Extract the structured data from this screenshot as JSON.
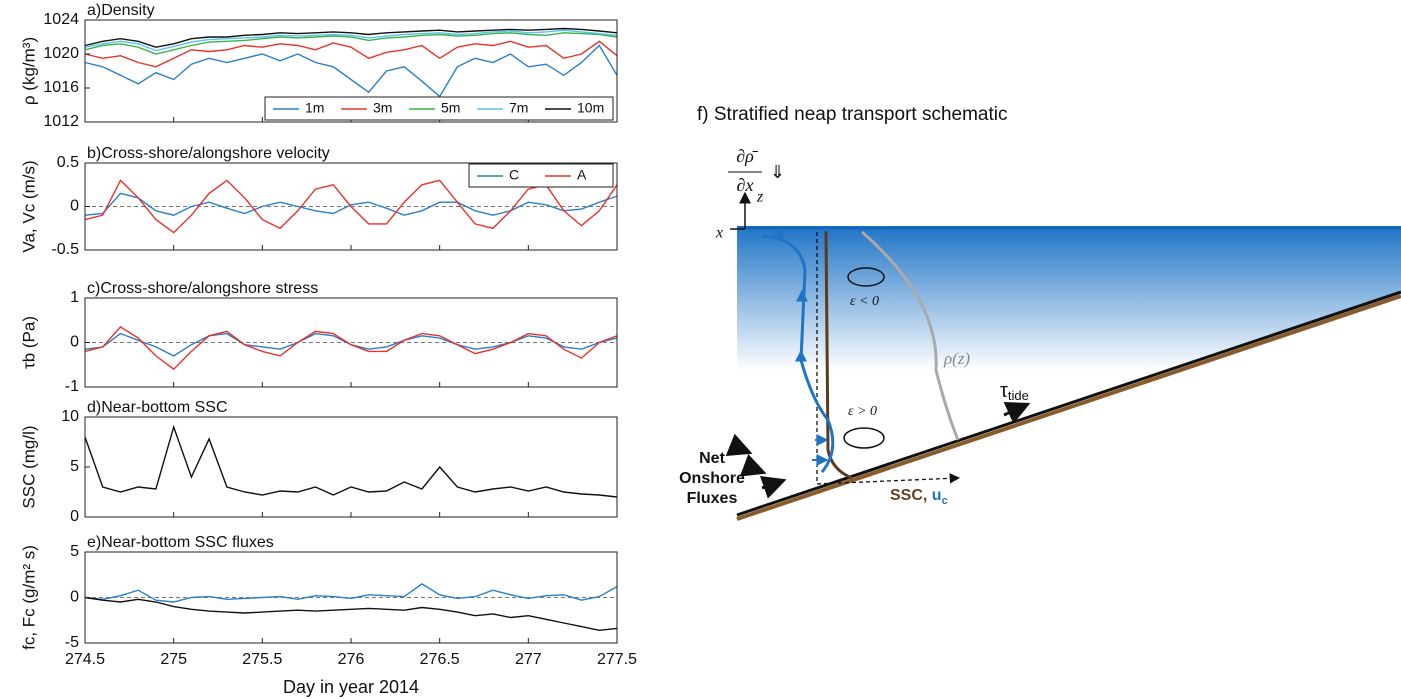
{
  "chart_data": [
    {
      "type": "line",
      "title": "a)Density",
      "ylabel": "ρ (kg/m³)",
      "x": [
        274.5,
        274.6,
        274.7,
        274.8,
        274.9,
        275,
        275.1,
        275.2,
        275.3,
        275.4,
        275.5,
        275.6,
        275.7,
        275.8,
        275.9,
        276,
        276.1,
        276.2,
        276.3,
        276.4,
        276.5,
        276.6,
        276.7,
        276.8,
        276.9,
        277,
        277.1,
        277.2,
        277.3,
        277.4,
        277.5
      ],
      "xlim": [
        274.5,
        277.5
      ],
      "xticks": [
        274.5,
        275,
        275.5,
        276,
        276.5,
        277,
        277.5
      ],
      "xtick_labels": false,
      "ylim": [
        1012,
        1024
      ],
      "yticks": [
        1012,
        1016,
        1020,
        1024
      ],
      "legend": "lower right",
      "zero_line": false,
      "series": [
        {
          "name": "1m",
          "color": "#2a7fc9",
          "values": [
            1019,
            1018.5,
            1017.5,
            1016.5,
            1017.8,
            1017,
            1018.8,
            1019.5,
            1019,
            1019.5,
            1020,
            1019.2,
            1020,
            1019,
            1018.5,
            1017,
            1015.5,
            1018,
            1018.5,
            1016.8,
            1015,
            1018.5,
            1019.5,
            1019,
            1020,
            1018.5,
            1018.8,
            1017.5,
            1019,
            1021,
            1017.5
          ]
        },
        {
          "name": "3m",
          "color": "#e8322c",
          "values": [
            1020,
            1019.5,
            1019.8,
            1019,
            1018.5,
            1019.5,
            1020.5,
            1020.3,
            1020.5,
            1021,
            1020.8,
            1021.2,
            1021,
            1020.5,
            1021.3,
            1020.8,
            1019.5,
            1020.2,
            1020.5,
            1021,
            1019.5,
            1020.8,
            1021.2,
            1021,
            1021.5,
            1020.8,
            1021,
            1019.5,
            1020,
            1021.5,
            1019.8
          ]
        },
        {
          "name": "5m",
          "color": "#3cb44b",
          "values": [
            1020.5,
            1021,
            1021.2,
            1020.8,
            1020,
            1020.5,
            1021,
            1021.4,
            1021.5,
            1021.6,
            1021.8,
            1022,
            1021.9,
            1022,
            1022.1,
            1022,
            1021.6,
            1021.9,
            1022,
            1022.2,
            1022.3,
            1022.1,
            1022.2,
            1022.4,
            1022.5,
            1022.3,
            1022.2,
            1022.5,
            1022.4,
            1022.3,
            1022
          ]
        },
        {
          "name": "7m",
          "color": "#5cc3ee",
          "values": [
            1020.8,
            1021.2,
            1021.5,
            1021.2,
            1020.4,
            1020.9,
            1021.4,
            1021.7,
            1021.8,
            1021.9,
            1022,
            1022.2,
            1022.1,
            1022.2,
            1022.3,
            1022.2,
            1021.9,
            1022.1,
            1022.3,
            1022.4,
            1022.5,
            1022.3,
            1022.4,
            1022.6,
            1022.7,
            1022.5,
            1022.6,
            1022.8,
            1022.6,
            1022.4,
            1022.2
          ]
        },
        {
          "name": "10m",
          "color": "#111111",
          "values": [
            1021,
            1021.5,
            1021.8,
            1021.5,
            1020.8,
            1021.2,
            1021.8,
            1022,
            1022,
            1022.2,
            1022.3,
            1022.5,
            1022.4,
            1022.5,
            1022.6,
            1022.5,
            1022.3,
            1022.5,
            1022.6,
            1022.7,
            1022.8,
            1022.6,
            1022.7,
            1022.8,
            1022.9,
            1022.8,
            1022.9,
            1023,
            1022.9,
            1022.7,
            1022.5
          ]
        }
      ]
    },
    {
      "type": "line",
      "title": "b)Cross-shore/alongshore velocity",
      "ylabel": "Va, Vc (m/s)",
      "x": [
        274.5,
        274.6,
        274.7,
        274.8,
        274.9,
        275,
        275.1,
        275.2,
        275.3,
        275.4,
        275.5,
        275.6,
        275.7,
        275.8,
        275.9,
        276,
        276.1,
        276.2,
        276.3,
        276.4,
        276.5,
        276.6,
        276.7,
        276.8,
        276.9,
        277,
        277.1,
        277.2,
        277.3,
        277.4,
        277.5
      ],
      "xlim": [
        274.5,
        277.5
      ],
      "xticks": [
        274.5,
        275,
        275.5,
        276,
        276.5,
        277,
        277.5
      ],
      "xtick_labels": false,
      "ylim": [
        -0.5,
        0.5
      ],
      "yticks": [
        -0.5,
        0,
        0.5
      ],
      "legend": "upper right",
      "zero_line": true,
      "series": [
        {
          "name": "C",
          "color": "#2a7fc9",
          "values": [
            -0.1,
            -0.08,
            0.15,
            0.1,
            -0.05,
            -0.1,
            0,
            0.05,
            -0.02,
            -0.08,
            0,
            0.05,
            0,
            -0.05,
            -0.08,
            0.02,
            0.05,
            -0.02,
            -0.1,
            -0.05,
            0.05,
            0.05,
            -0.05,
            -0.1,
            -0.05,
            0.05,
            0.02,
            -0.05,
            -0.03,
            0.05,
            0.12
          ]
        },
        {
          "name": "A",
          "color": "#e8322c",
          "values": [
            -0.15,
            -0.1,
            0.3,
            0.1,
            -0.15,
            -0.3,
            -0.1,
            0.15,
            0.3,
            0.1,
            -0.15,
            -0.25,
            -0.05,
            0.2,
            0.25,
            0,
            -0.2,
            -0.2,
            0.05,
            0.25,
            0.3,
            0.05,
            -0.2,
            -0.25,
            -0.05,
            0.2,
            0.25,
            -0.05,
            -0.22,
            -0.05,
            0.25
          ]
        }
      ]
    },
    {
      "type": "line",
      "title": "c)Cross-shore/alongshore stress",
      "ylabel": "τb (Pa)",
      "x": [
        274.5,
        274.6,
        274.7,
        274.8,
        274.9,
        275,
        275.1,
        275.2,
        275.3,
        275.4,
        275.5,
        275.6,
        275.7,
        275.8,
        275.9,
        276,
        276.1,
        276.2,
        276.3,
        276.4,
        276.5,
        276.6,
        276.7,
        276.8,
        276.9,
        277,
        277.1,
        277.2,
        277.3,
        277.4,
        277.5
      ],
      "xlim": [
        274.5,
        277.5
      ],
      "xticks": [
        274.5,
        275,
        275.5,
        276,
        276.5,
        277,
        277.5
      ],
      "xtick_labels": false,
      "ylim": [
        -1,
        1
      ],
      "yticks": [
        -1,
        0,
        1
      ],
      "zero_line": true,
      "series": [
        {
          "color": "#2a7fc9",
          "values": [
            -0.15,
            -0.1,
            0.2,
            0.05,
            -0.1,
            -0.3,
            -0.05,
            0.15,
            0.2,
            -0.05,
            -0.1,
            -0.15,
            0,
            0.2,
            0.15,
            -0.05,
            -0.15,
            -0.1,
            0.05,
            0.15,
            0.1,
            -0.05,
            -0.15,
            -0.1,
            0,
            0.15,
            0.1,
            -0.1,
            -0.15,
            0,
            0.1
          ]
        },
        {
          "color": "#e8322c",
          "values": [
            -0.2,
            -0.1,
            0.35,
            0.1,
            -0.3,
            -0.6,
            -0.2,
            0.15,
            0.25,
            -0.05,
            -0.2,
            -0.3,
            0,
            0.25,
            0.2,
            -0.05,
            -0.2,
            -0.2,
            0.05,
            0.2,
            0.15,
            -0.05,
            -0.25,
            -0.15,
            0,
            0.2,
            0.15,
            -0.15,
            -0.35,
            0,
            0.15
          ]
        }
      ]
    },
    {
      "type": "line",
      "title": "d)Near-bottom SSC",
      "ylabel": "SSC (mg/l)",
      "x": [
        274.5,
        274.6,
        274.7,
        274.8,
        274.9,
        275,
        275.1,
        275.2,
        275.3,
        275.4,
        275.5,
        275.6,
        275.7,
        275.8,
        275.9,
        276,
        276.1,
        276.2,
        276.3,
        276.4,
        276.5,
        276.6,
        276.7,
        276.8,
        276.9,
        277,
        277.1,
        277.2,
        277.3,
        277.4,
        277.5
      ],
      "xlim": [
        274.5,
        277.5
      ],
      "xticks": [
        274.5,
        275,
        275.5,
        276,
        276.5,
        277,
        277.5
      ],
      "xtick_labels": false,
      "ylim": [
        0,
        10
      ],
      "yticks": [
        0,
        5,
        10
      ],
      "zero_line": false,
      "series": [
        {
          "color": "#111111",
          "values": [
            8,
            3,
            2.5,
            3,
            2.8,
            9,
            4,
            7.8,
            3,
            2.5,
            2.2,
            2.6,
            2.5,
            3,
            2.2,
            3,
            2.5,
            2.6,
            3.5,
            2.8,
            5,
            3,
            2.5,
            2.8,
            3,
            2.6,
            3,
            2.5,
            2.3,
            2.2,
            2
          ]
        }
      ]
    },
    {
      "type": "line",
      "title": "e)Near-bottom SSC fluxes",
      "ylabel": "fc, Fc (g/m² s)",
      "xlabel": "Day in year 2014",
      "x": [
        274.5,
        274.6,
        274.7,
        274.8,
        274.9,
        275,
        275.1,
        275.2,
        275.3,
        275.4,
        275.5,
        275.6,
        275.7,
        275.8,
        275.9,
        276,
        276.1,
        276.2,
        276.3,
        276.4,
        276.5,
        276.6,
        276.7,
        276.8,
        276.9,
        277,
        277.1,
        277.2,
        277.3,
        277.4,
        277.5
      ],
      "xlim": [
        274.5,
        277.5
      ],
      "xticks": [
        274.5,
        275,
        275.5,
        276,
        276.5,
        277,
        277.5
      ],
      "xtick_labels": true,
      "ylim": [
        -5,
        5
      ],
      "yticks": [
        -5,
        0,
        5
      ],
      "zero_line": true,
      "series": [
        {
          "color": "#2a7fc9",
          "values": [
            0,
            -0.2,
            0.2,
            0.8,
            -0.3,
            -0.5,
            0,
            0.1,
            -0.2,
            -0.1,
            0,
            0.1,
            -0.2,
            0.2,
            0.1,
            -0.1,
            0.3,
            0.2,
            0.1,
            1.5,
            0.3,
            -0.1,
            0.1,
            0.8,
            0.3,
            -0.1,
            0.2,
            0.3,
            -0.3,
            0.1,
            1.2
          ]
        },
        {
          "color": "#111111",
          "values": [
            0,
            -0.3,
            -0.5,
            -0.2,
            -0.5,
            -1,
            -1.3,
            -1.5,
            -1.6,
            -1.7,
            -1.6,
            -1.5,
            -1.4,
            -1.5,
            -1.4,
            -1.3,
            -1.2,
            -1.3,
            -1.4,
            -1.1,
            -1.3,
            -1.6,
            -2,
            -1.8,
            -2.2,
            -2,
            -2.4,
            -2.8,
            -3.2,
            -3.6,
            -3.4
          ]
        }
      ]
    }
  ],
  "schematic": {
    "title": "f) Stratified neap transport schematic",
    "gradient_numerator": "∂ρ̄",
    "gradient_denominator": "∂x",
    "gradient_arrow": "⇓",
    "z_axis": "z",
    "x_axis": "x",
    "eddy_top": "ε < 0",
    "eddy_bottom": "ε > 0",
    "density_profile": "ρ(z)",
    "tau_symbol": "τ",
    "tau_subscript": "tide",
    "net_flux_label": [
      "Net",
      "Onshore",
      "Fluxes"
    ],
    "ssc_label": "SSC, ",
    "u_symbol": "u",
    "u_subscript": "c"
  }
}
